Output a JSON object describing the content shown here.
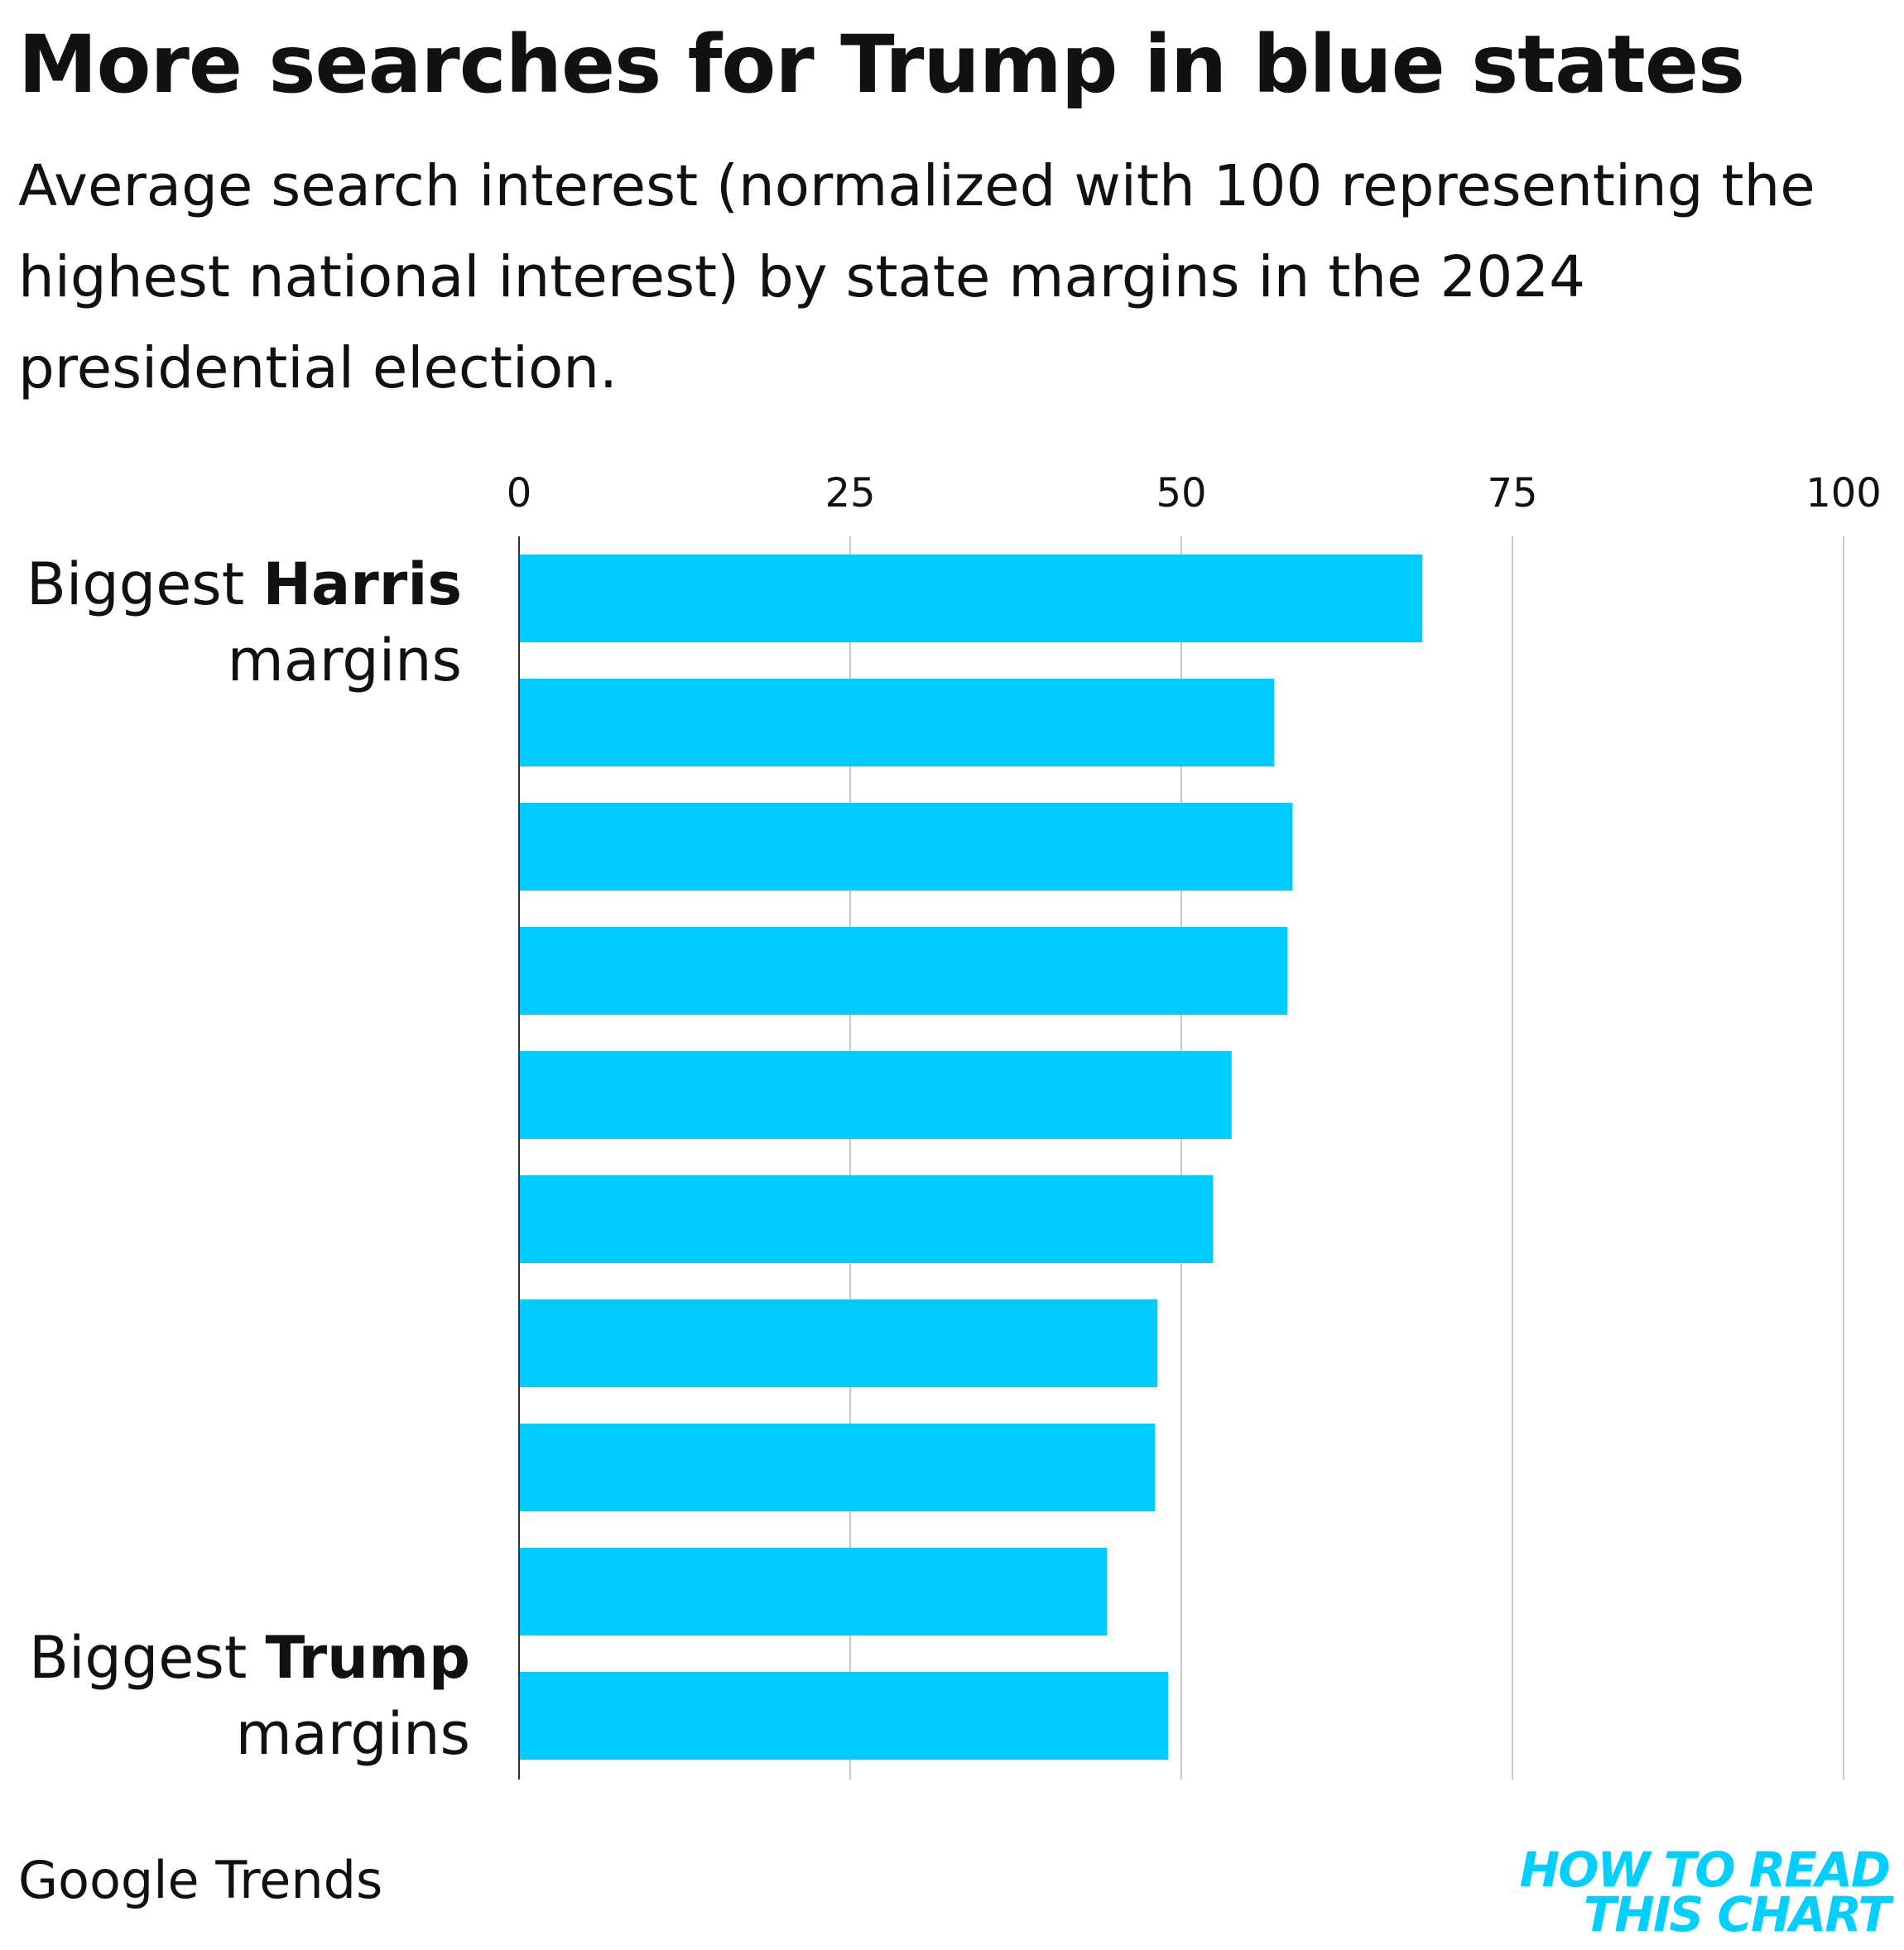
{
  "title": "More searches for Trump in blue states",
  "subtitle": "Average search interest (normalized with 100 representing the highest national interest) by state margins in the 2024 presidential election.",
  "chart_data": {
    "type": "bar",
    "orientation": "horizontal",
    "title": "More searches for Trump in blue states",
    "xlabel": "",
    "ylabel": "",
    "xlim": [
      0,
      100
    ],
    "x_ticks": [
      "0",
      "25",
      "50",
      "75",
      "100"
    ],
    "grid": true,
    "bar_color": "#00CCFF",
    "values": [
      68.2,
      57.0,
      58.4,
      58.0,
      53.8,
      52.4,
      48.2,
      48.0,
      44.4,
      49.0
    ],
    "top_label": {
      "prefix": "Biggest ",
      "bold": "Harris",
      "suffix": "margins"
    },
    "bottom_label": {
      "prefix": "Biggest ",
      "bold": "Trump",
      "suffix": "margins"
    }
  },
  "source": "Google Trends",
  "brand": {
    "line1": "HOW TO READ",
    "line2": "THIS CHART",
    "color": "#00CFFF"
  }
}
